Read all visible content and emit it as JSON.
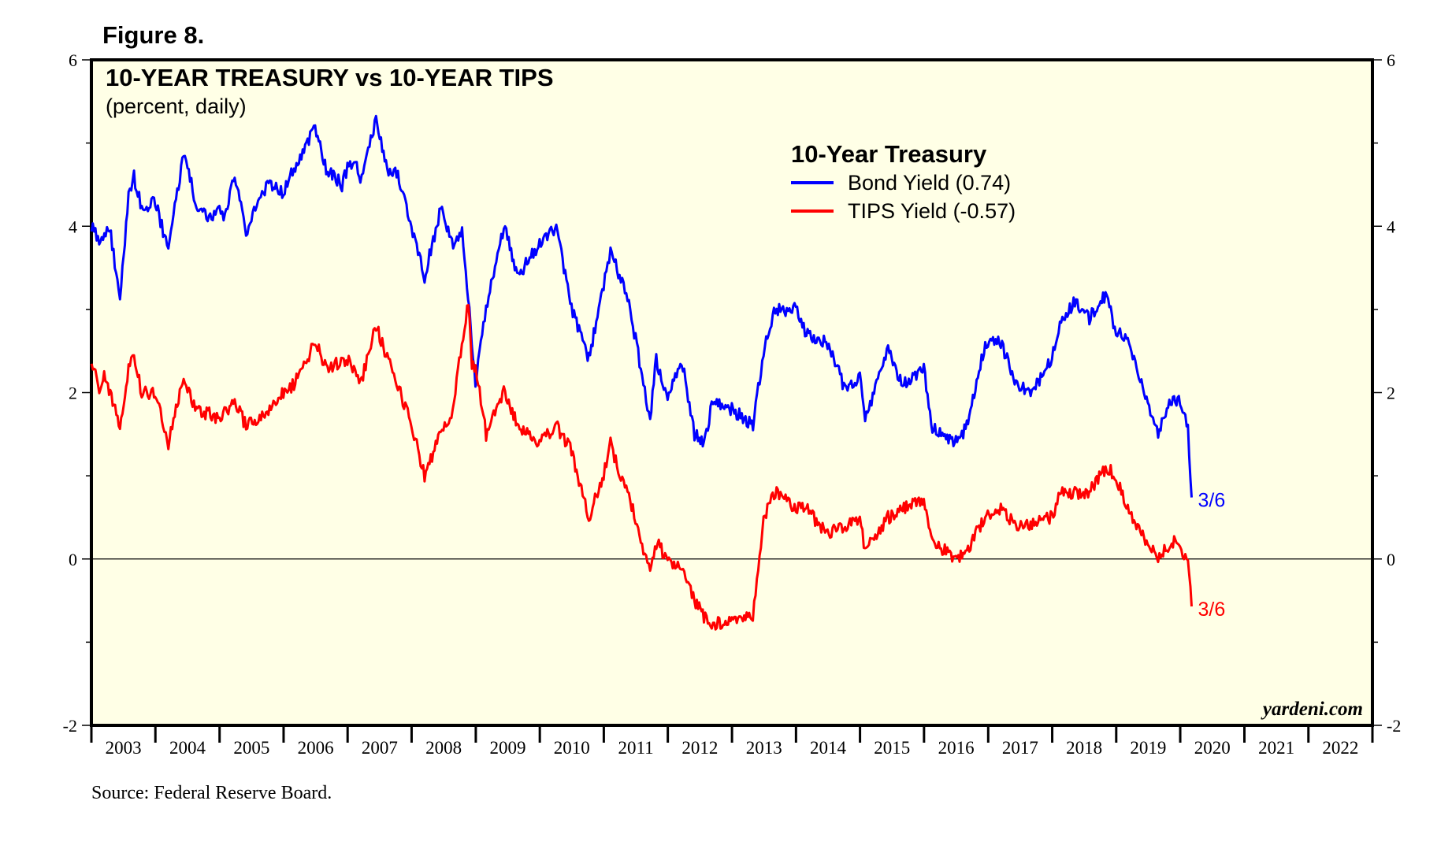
{
  "figure_label": "Figure 8.",
  "source": "Source: Federal Reserve Board.",
  "watermark": "yardeni.com",
  "colors": {
    "plot_background": "#ffffe6",
    "bond": "#0000ff",
    "tips": "#ff0000",
    "frame": "#000000"
  },
  "chart_data": {
    "type": "line",
    "title": "10-YEAR TREASURY vs 10-YEAR TIPS",
    "subtitle": "(percent, daily)",
    "legend_title": "10-Year Treasury",
    "legend_position": "top-center",
    "ylim": [
      -2,
      6
    ],
    "yticks": [
      "-2",
      "0",
      "2",
      "4",
      "6"
    ],
    "x_range": [
      "2003-01-01",
      "2023-01-01"
    ],
    "x_categories": [
      "2003",
      "2004",
      "2005",
      "2006",
      "2007",
      "2008",
      "2009",
      "2010",
      "2011",
      "2012",
      "2013",
      "2014",
      "2015",
      "2016",
      "2017",
      "2018",
      "2019",
      "2020",
      "2021",
      "2022"
    ],
    "reference_line_y": 0,
    "series": [
      {
        "name": "Bond Yield (0.74)",
        "color": "#0000ff",
        "end_label": "3/6",
        "points": [
          [
            "2003-01-02",
            4.0
          ],
          [
            "2003-03-01",
            3.8
          ],
          [
            "2003-04-15",
            4.0
          ],
          [
            "2003-06-13",
            3.1
          ],
          [
            "2003-08-01",
            4.4
          ],
          [
            "2003-09-01",
            4.6
          ],
          [
            "2003-10-15",
            4.2
          ],
          [
            "2003-12-31",
            4.3
          ],
          [
            "2004-03-15",
            3.7
          ],
          [
            "2004-06-10",
            4.9
          ],
          [
            "2004-08-15",
            4.3
          ],
          [
            "2004-11-01",
            4.1
          ],
          [
            "2004-12-31",
            4.2
          ],
          [
            "2005-02-01",
            4.1
          ],
          [
            "2005-03-28",
            4.6
          ],
          [
            "2005-06-01",
            3.9
          ],
          [
            "2005-08-01",
            4.3
          ],
          [
            "2005-10-01",
            4.5
          ],
          [
            "2005-12-31",
            4.4
          ],
          [
            "2006-03-01",
            4.7
          ],
          [
            "2006-06-30",
            5.2
          ],
          [
            "2006-09-01",
            4.7
          ],
          [
            "2006-11-30",
            4.5
          ],
          [
            "2006-12-31",
            4.7
          ],
          [
            "2007-02-15",
            4.8
          ],
          [
            "2007-03-15",
            4.5
          ],
          [
            "2007-06-12",
            5.3
          ],
          [
            "2007-08-15",
            4.7
          ],
          [
            "2007-10-15",
            4.6
          ],
          [
            "2007-12-31",
            4.0
          ],
          [
            "2008-03-15",
            3.4
          ],
          [
            "2008-06-15",
            4.2
          ],
          [
            "2008-09-01",
            3.7
          ],
          [
            "2008-10-15",
            4.0
          ],
          [
            "2008-12-30",
            2.1
          ],
          [
            "2009-03-01",
            3.0
          ],
          [
            "2009-06-10",
            4.0
          ],
          [
            "2009-09-01",
            3.4
          ],
          [
            "2009-12-31",
            3.8
          ],
          [
            "2010-04-05",
            4.0
          ],
          [
            "2010-07-01",
            3.0
          ],
          [
            "2010-10-08",
            2.4
          ],
          [
            "2010-12-31",
            3.3
          ],
          [
            "2011-02-08",
            3.7
          ],
          [
            "2011-04-01",
            3.4
          ],
          [
            "2011-06-01",
            3.0
          ],
          [
            "2011-08-15",
            2.1
          ],
          [
            "2011-09-22",
            1.7
          ],
          [
            "2011-10-27",
            2.4
          ],
          [
            "2011-12-31",
            1.9
          ],
          [
            "2012-03-20",
            2.4
          ],
          [
            "2012-06-01",
            1.5
          ],
          [
            "2012-07-25",
            1.4
          ],
          [
            "2012-09-15",
            1.9
          ],
          [
            "2012-12-31",
            1.8
          ],
          [
            "2013-05-01",
            1.6
          ],
          [
            "2013-06-30",
            2.5
          ],
          [
            "2013-09-05",
            3.0
          ],
          [
            "2013-12-31",
            3.0
          ],
          [
            "2014-03-01",
            2.7
          ],
          [
            "2014-06-30",
            2.6
          ],
          [
            "2014-10-15",
            2.0
          ],
          [
            "2014-12-31",
            2.2
          ],
          [
            "2015-01-30",
            1.7
          ],
          [
            "2015-06-10",
            2.5
          ],
          [
            "2015-09-01",
            2.1
          ],
          [
            "2015-12-31",
            2.3
          ],
          [
            "2016-02-11",
            1.6
          ],
          [
            "2016-07-08",
            1.4
          ],
          [
            "2016-09-01",
            1.6
          ],
          [
            "2016-12-15",
            2.6
          ],
          [
            "2017-03-14",
            2.6
          ],
          [
            "2017-06-15",
            2.1
          ],
          [
            "2017-09-07",
            2.0
          ],
          [
            "2017-12-31",
            2.4
          ],
          [
            "2018-02-21",
            2.9
          ],
          [
            "2018-05-17",
            3.1
          ],
          [
            "2018-08-01",
            2.9
          ],
          [
            "2018-11-08",
            3.2
          ],
          [
            "2018-12-31",
            2.7
          ],
          [
            "2019-03-01",
            2.7
          ],
          [
            "2019-06-01",
            2.1
          ],
          [
            "2019-08-28",
            1.5
          ],
          [
            "2019-11-07",
            1.9
          ],
          [
            "2019-12-31",
            1.9
          ],
          [
            "2020-01-15",
            1.8
          ],
          [
            "2020-02-14",
            1.6
          ],
          [
            "2020-03-06",
            0.74
          ]
        ]
      },
      {
        "name": "TIPS Yield (-0.57)",
        "color": "#ff0000",
        "end_label": "3/6",
        "points": [
          [
            "2003-01-02",
            2.4
          ],
          [
            "2003-02-15",
            2.0
          ],
          [
            "2003-03-15",
            2.2
          ],
          [
            "2003-06-13",
            1.6
          ],
          [
            "2003-08-01",
            2.3
          ],
          [
            "2003-09-01",
            2.4
          ],
          [
            "2003-10-15",
            2.0
          ],
          [
            "2003-12-31",
            2.0
          ],
          [
            "2004-03-15",
            1.4
          ],
          [
            "2004-06-10",
            2.2
          ],
          [
            "2004-08-15",
            1.8
          ],
          [
            "2004-12-31",
            1.7
          ],
          [
            "2005-03-28",
            1.9
          ],
          [
            "2005-06-01",
            1.6
          ],
          [
            "2005-09-01",
            1.7
          ],
          [
            "2005-12-31",
            2.0
          ],
          [
            "2006-03-01",
            2.1
          ],
          [
            "2006-06-30",
            2.6
          ],
          [
            "2006-09-01",
            2.3
          ],
          [
            "2006-12-31",
            2.4
          ],
          [
            "2007-03-15",
            2.1
          ],
          [
            "2007-06-12",
            2.8
          ],
          [
            "2007-08-15",
            2.4
          ],
          [
            "2007-10-15",
            2.1
          ],
          [
            "2007-12-31",
            1.6
          ],
          [
            "2008-03-15",
            1.0
          ],
          [
            "2008-06-15",
            1.5
          ],
          [
            "2008-08-15",
            1.7
          ],
          [
            "2008-11-20",
            3.1
          ],
          [
            "2008-12-10",
            2.3
          ],
          [
            "2008-12-31",
            2.3
          ],
          [
            "2009-03-01",
            1.5
          ],
          [
            "2009-06-10",
            2.0
          ],
          [
            "2009-09-01",
            1.6
          ],
          [
            "2009-12-31",
            1.4
          ],
          [
            "2010-04-05",
            1.6
          ],
          [
            "2010-07-01",
            1.3
          ],
          [
            "2010-10-08",
            0.5
          ],
          [
            "2010-12-31",
            1.0
          ],
          [
            "2011-02-08",
            1.4
          ],
          [
            "2011-04-01",
            1.0
          ],
          [
            "2011-06-01",
            0.7
          ],
          [
            "2011-08-15",
            0.1
          ],
          [
            "2011-09-22",
            -0.1
          ],
          [
            "2011-10-27",
            0.2
          ],
          [
            "2011-12-31",
            0.0
          ],
          [
            "2012-03-20",
            -0.1
          ],
          [
            "2012-06-01",
            -0.5
          ],
          [
            "2012-07-25",
            -0.7
          ],
          [
            "2012-09-15",
            -0.8
          ],
          [
            "2012-12-31",
            -0.7
          ],
          [
            "2013-04-30",
            -0.7
          ],
          [
            "2013-06-30",
            0.5
          ],
          [
            "2013-09-05",
            0.8
          ],
          [
            "2013-12-31",
            0.6
          ],
          [
            "2014-03-01",
            0.6
          ],
          [
            "2014-06-30",
            0.3
          ],
          [
            "2014-10-15",
            0.4
          ],
          [
            "2014-12-31",
            0.5
          ],
          [
            "2015-01-30",
            0.1
          ],
          [
            "2015-06-10",
            0.5
          ],
          [
            "2015-09-01",
            0.6
          ],
          [
            "2015-12-31",
            0.7
          ],
          [
            "2016-02-11",
            0.2
          ],
          [
            "2016-07-08",
            0.0
          ],
          [
            "2016-09-01",
            0.1
          ],
          [
            "2016-12-15",
            0.5
          ],
          [
            "2017-03-14",
            0.6
          ],
          [
            "2017-06-15",
            0.4
          ],
          [
            "2017-09-07",
            0.4
          ],
          [
            "2017-12-31",
            0.5
          ],
          [
            "2018-02-21",
            0.8
          ],
          [
            "2018-05-17",
            0.8
          ],
          [
            "2018-08-01",
            0.8
          ],
          [
            "2018-11-08",
            1.1
          ],
          [
            "2018-12-31",
            1.0
          ],
          [
            "2019-03-01",
            0.6
          ],
          [
            "2019-06-01",
            0.3
          ],
          [
            "2019-08-28",
            0.0
          ],
          [
            "2019-11-07",
            0.2
          ],
          [
            "2019-12-31",
            0.2
          ],
          [
            "2020-01-15",
            0.1
          ],
          [
            "2020-02-14",
            0.0
          ],
          [
            "2020-03-06",
            -0.57
          ]
        ]
      }
    ]
  }
}
